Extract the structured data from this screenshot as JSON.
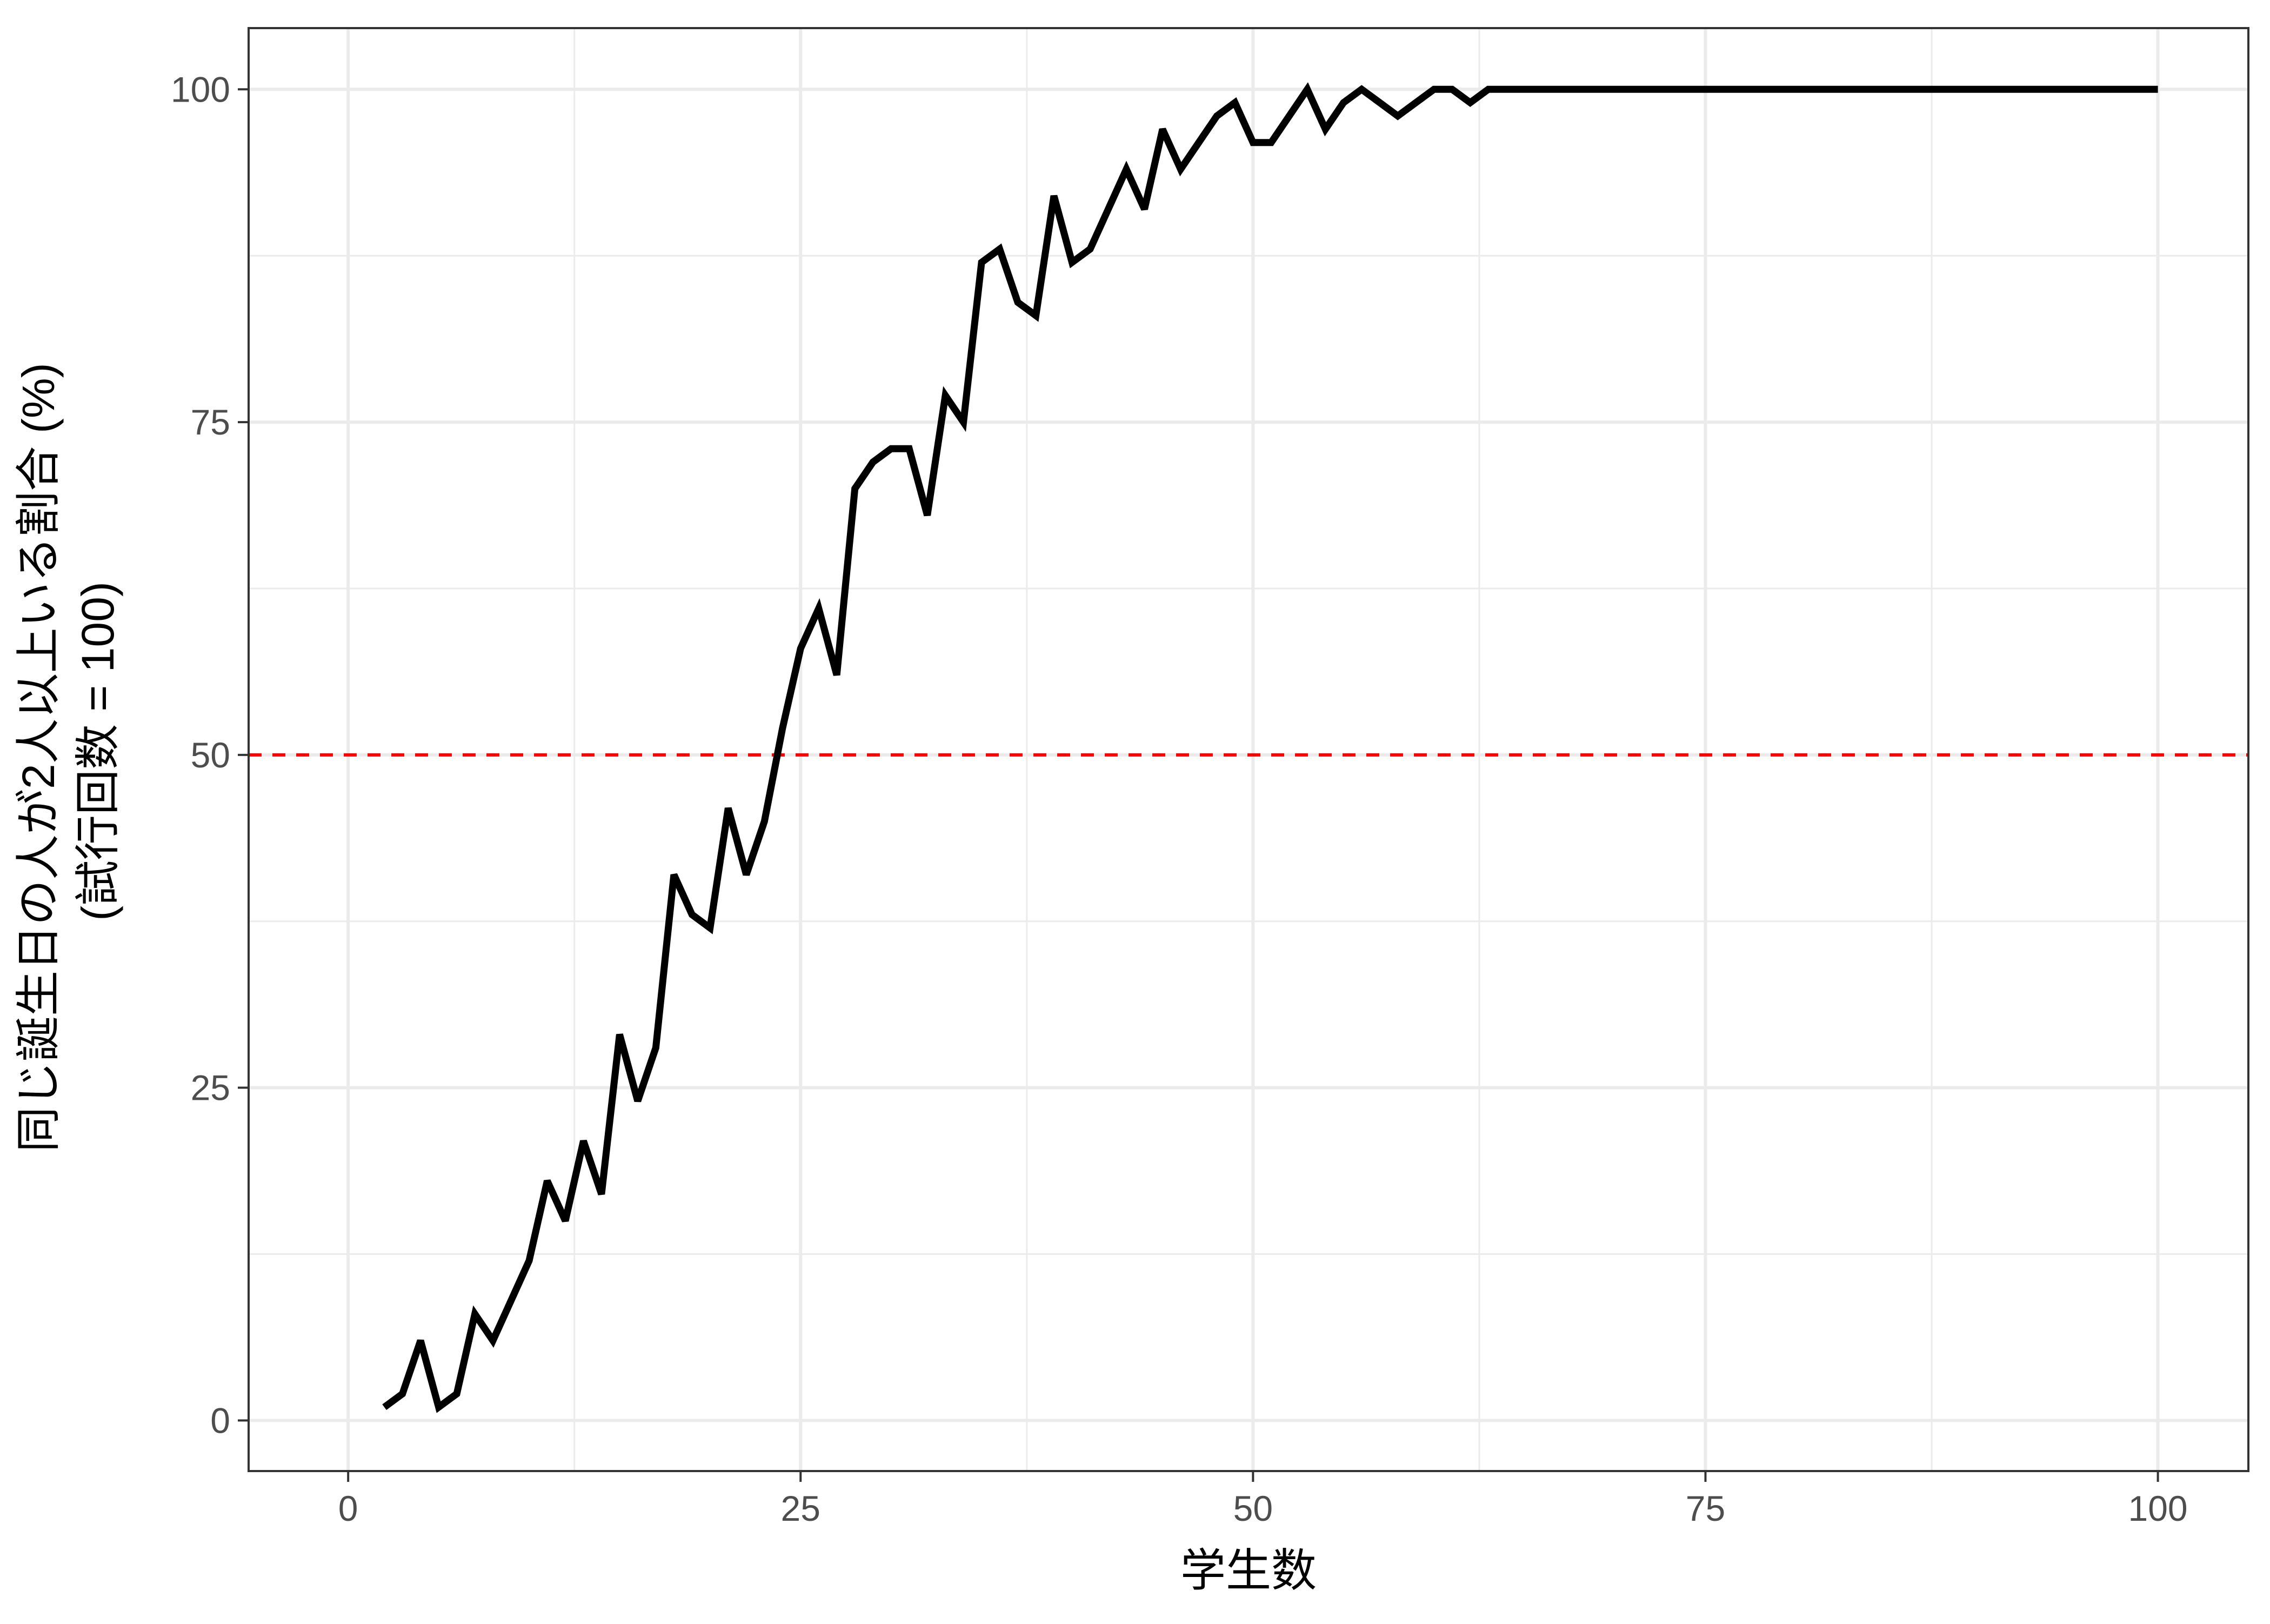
{
  "chart_data": {
    "type": "line",
    "title": "",
    "xlabel": "学生数",
    "ylabel_lines": [
      "同じ誕生日の人が2人以上いる割合 (%)",
      "(試行回数 = 100)"
    ],
    "xlim": [
      -5.5,
      105
    ],
    "ylim": [
      -3.8,
      104.6
    ],
    "x_ticks": [
      0,
      25,
      50,
      75,
      100
    ],
    "x_tick_labels": [
      "0",
      "25",
      "50",
      "75",
      "100"
    ],
    "y_ticks": [
      0,
      25,
      50,
      75,
      100
    ],
    "y_tick_labels": [
      "0",
      "25",
      "50",
      "75",
      "100"
    ],
    "x_minor": [
      12.5,
      37.5,
      62.5,
      87.5
    ],
    "y_minor": [
      12.5,
      37.5,
      62.5,
      87.5
    ],
    "grid": true,
    "reference_line": {
      "y": 50,
      "color": "#ff0000",
      "style": "dashed"
    },
    "series": [
      {
        "color": "#000000",
        "x": [
          2,
          3,
          4,
          5,
          6,
          7,
          8,
          9,
          10,
          11,
          12,
          13,
          14,
          15,
          16,
          17,
          18,
          19,
          20,
          21,
          22,
          23,
          24,
          25,
          26,
          27,
          28,
          29,
          30,
          31,
          32,
          33,
          34,
          35,
          36,
          37,
          38,
          39,
          40,
          41,
          42,
          43,
          44,
          45,
          46,
          47,
          48,
          49,
          50,
          51,
          52,
          53,
          54,
          55,
          56,
          57,
          58,
          59,
          60,
          61,
          62,
          63,
          64,
          65,
          66,
          67,
          68,
          69,
          70,
          71,
          72,
          73,
          74,
          75,
          76,
          77,
          78,
          79,
          80,
          81,
          82,
          83,
          84,
          85,
          86,
          87,
          88,
          89,
          90,
          91,
          92,
          93,
          94,
          95,
          96,
          97,
          98,
          99,
          100
        ],
        "y": [
          1,
          2,
          6,
          1,
          2,
          8,
          6,
          9,
          12,
          18,
          15,
          21,
          17,
          29,
          24,
          28,
          41,
          38,
          37,
          46,
          41,
          45,
          52,
          58,
          61,
          56,
          70,
          72,
          73,
          73,
          68,
          77,
          75,
          87,
          88,
          84,
          83,
          92,
          87,
          88,
          91,
          94,
          91,
          97,
          94,
          96,
          98,
          99,
          96,
          96,
          98,
          100,
          97,
          99,
          100,
          99,
          98,
          99,
          100,
          100,
          99,
          100,
          100,
          100,
          100,
          100,
          100,
          100,
          100,
          100,
          100,
          100,
          100,
          100,
          100,
          100,
          100,
          100,
          100,
          100,
          100,
          100,
          100,
          100,
          100,
          100,
          100,
          100,
          100,
          100,
          100,
          100,
          100,
          100,
          100,
          100,
          100,
          100,
          100
        ]
      }
    ]
  }
}
